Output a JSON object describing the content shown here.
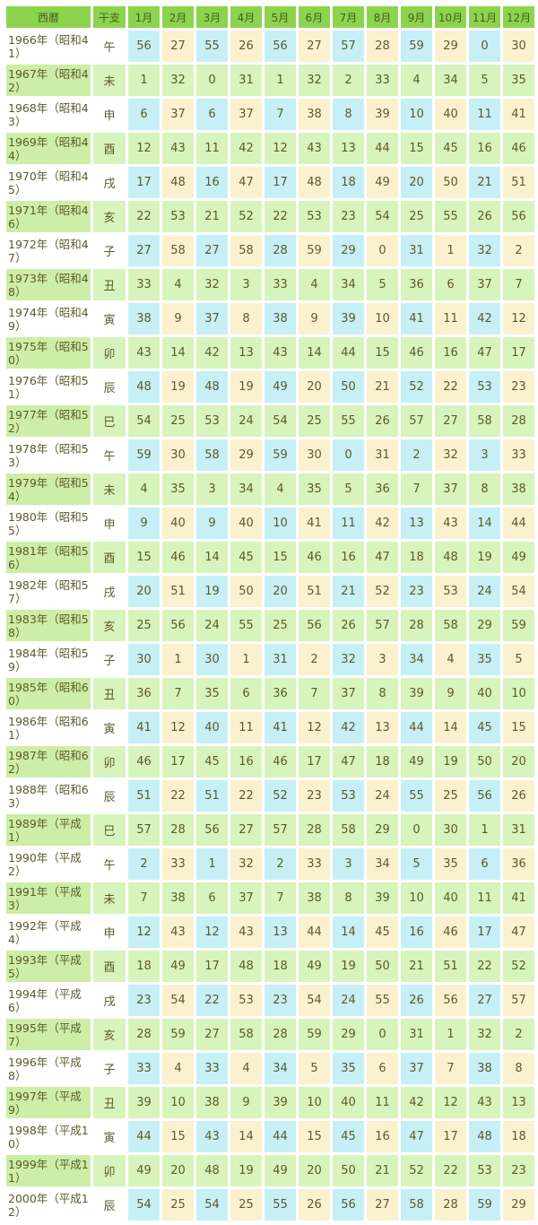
{
  "table": {
    "headers": [
      "西暦",
      "干支",
      "1月",
      "2月",
      "3月",
      "4月",
      "5月",
      "6月",
      "7月",
      "8月",
      "9月",
      "10月",
      "11月",
      "12月"
    ],
    "colors": {
      "header": "#8cd44e",
      "blue": "#c6f0f6",
      "yellow": "#fbf1cf",
      "green": "#d7f4bc",
      "text": "#5b5a2c"
    },
    "rows": [
      {
        "year": "1966年（昭和41）",
        "eto": "午",
        "values": [
          56,
          27,
          55,
          26,
          56,
          27,
          57,
          28,
          59,
          29,
          0,
          30
        ]
      },
      {
        "year": "1967年（昭和42）",
        "eto": "未",
        "values": [
          1,
          32,
          0,
          31,
          1,
          32,
          2,
          33,
          4,
          34,
          5,
          35
        ]
      },
      {
        "year": "1968年（昭和43）",
        "eto": "申",
        "values": [
          6,
          37,
          6,
          37,
          7,
          38,
          8,
          39,
          10,
          40,
          11,
          41
        ]
      },
      {
        "year": "1969年（昭和44）",
        "eto": "酉",
        "values": [
          12,
          43,
          11,
          42,
          12,
          43,
          13,
          44,
          15,
          45,
          16,
          46
        ]
      },
      {
        "year": "1970年（昭和45）",
        "eto": "戌",
        "values": [
          17,
          48,
          16,
          47,
          17,
          48,
          18,
          49,
          20,
          50,
          21,
          51
        ]
      },
      {
        "year": "1971年（昭和46）",
        "eto": "亥",
        "values": [
          22,
          53,
          21,
          52,
          22,
          53,
          23,
          54,
          25,
          55,
          26,
          56
        ]
      },
      {
        "year": "1972年（昭和47）",
        "eto": "子",
        "values": [
          27,
          58,
          27,
          58,
          28,
          59,
          29,
          0,
          31,
          1,
          32,
          2
        ]
      },
      {
        "year": "1973年（昭和48）",
        "eto": "丑",
        "values": [
          33,
          4,
          32,
          3,
          33,
          4,
          34,
          5,
          36,
          6,
          37,
          7
        ]
      },
      {
        "year": "1974年（昭和49）",
        "eto": "寅",
        "values": [
          38,
          9,
          37,
          8,
          38,
          9,
          39,
          10,
          41,
          11,
          42,
          12
        ]
      },
      {
        "year": "1975年（昭和50）",
        "eto": "卯",
        "values": [
          43,
          14,
          42,
          13,
          43,
          14,
          44,
          15,
          46,
          16,
          47,
          17
        ]
      },
      {
        "year": "1976年（昭和51）",
        "eto": "辰",
        "values": [
          48,
          19,
          48,
          19,
          49,
          20,
          50,
          21,
          52,
          22,
          53,
          23
        ]
      },
      {
        "year": "1977年（昭和52）",
        "eto": "巳",
        "values": [
          54,
          25,
          53,
          24,
          54,
          25,
          55,
          26,
          57,
          27,
          58,
          28
        ]
      },
      {
        "year": "1978年（昭和53）",
        "eto": "午",
        "values": [
          59,
          30,
          58,
          29,
          59,
          30,
          0,
          31,
          2,
          32,
          3,
          33
        ]
      },
      {
        "year": "1979年（昭和54）",
        "eto": "未",
        "values": [
          4,
          35,
          3,
          34,
          4,
          35,
          5,
          36,
          7,
          37,
          8,
          38
        ]
      },
      {
        "year": "1980年（昭和55）",
        "eto": "申",
        "values": [
          9,
          40,
          9,
          40,
          10,
          41,
          11,
          42,
          13,
          43,
          14,
          44
        ]
      },
      {
        "year": "1981年（昭和56）",
        "eto": "酉",
        "values": [
          15,
          46,
          14,
          45,
          15,
          46,
          16,
          47,
          18,
          48,
          19,
          49
        ]
      },
      {
        "year": "1982年（昭和57）",
        "eto": "戌",
        "values": [
          20,
          51,
          19,
          50,
          20,
          51,
          21,
          52,
          23,
          53,
          24,
          54
        ]
      },
      {
        "year": "1983年（昭和58）",
        "eto": "亥",
        "values": [
          25,
          56,
          24,
          55,
          25,
          56,
          26,
          57,
          28,
          58,
          29,
          59
        ]
      },
      {
        "year": "1984年（昭和59）",
        "eto": "子",
        "values": [
          30,
          1,
          30,
          1,
          31,
          2,
          32,
          3,
          34,
          4,
          35,
          5
        ]
      },
      {
        "year": "1985年（昭和60）",
        "eto": "丑",
        "values": [
          36,
          7,
          35,
          6,
          36,
          7,
          37,
          8,
          39,
          9,
          40,
          10
        ]
      },
      {
        "year": "1986年（昭和61）",
        "eto": "寅",
        "values": [
          41,
          12,
          40,
          11,
          41,
          12,
          42,
          13,
          44,
          14,
          45,
          15
        ]
      },
      {
        "year": "1987年（昭和62）",
        "eto": "卯",
        "values": [
          46,
          17,
          45,
          16,
          46,
          17,
          47,
          18,
          49,
          19,
          50,
          20
        ]
      },
      {
        "year": "1988年（昭和63）",
        "eto": "辰",
        "values": [
          51,
          22,
          51,
          22,
          52,
          23,
          53,
          24,
          55,
          25,
          56,
          26
        ]
      },
      {
        "year": "1989年（平成1）",
        "eto": "巳",
        "values": [
          57,
          28,
          56,
          27,
          57,
          28,
          58,
          29,
          0,
          30,
          1,
          31
        ]
      },
      {
        "year": "1990年（平成2）",
        "eto": "午",
        "values": [
          2,
          33,
          1,
          32,
          2,
          33,
          3,
          34,
          5,
          35,
          6,
          36
        ]
      },
      {
        "year": "1991年（平成3）",
        "eto": "未",
        "values": [
          7,
          38,
          6,
          37,
          7,
          38,
          8,
          39,
          10,
          40,
          11,
          41
        ]
      },
      {
        "year": "1992年（平成4）",
        "eto": "申",
        "values": [
          12,
          43,
          12,
          43,
          13,
          44,
          14,
          45,
          16,
          46,
          17,
          47
        ]
      },
      {
        "year": "1993年（平成5）",
        "eto": "酉",
        "values": [
          18,
          49,
          17,
          48,
          18,
          49,
          19,
          50,
          21,
          51,
          22,
          52
        ]
      },
      {
        "year": "1994年（平成6）",
        "eto": "戌",
        "values": [
          23,
          54,
          22,
          53,
          23,
          54,
          24,
          55,
          26,
          56,
          27,
          57
        ]
      },
      {
        "year": "1995年（平成7）",
        "eto": "亥",
        "values": [
          28,
          59,
          27,
          58,
          28,
          59,
          29,
          0,
          31,
          1,
          32,
          2
        ]
      },
      {
        "year": "1996年（平成8）",
        "eto": "子",
        "values": [
          33,
          4,
          33,
          4,
          34,
          5,
          35,
          6,
          37,
          7,
          38,
          8
        ]
      },
      {
        "year": "1997年（平成9）",
        "eto": "丑",
        "values": [
          39,
          10,
          38,
          9,
          39,
          10,
          40,
          11,
          42,
          12,
          43,
          13
        ]
      },
      {
        "year": "1998年（平成10）",
        "eto": "寅",
        "values": [
          44,
          15,
          43,
          14,
          44,
          15,
          45,
          16,
          47,
          17,
          48,
          18
        ]
      },
      {
        "year": "1999年（平成11）",
        "eto": "卯",
        "values": [
          49,
          20,
          48,
          19,
          49,
          20,
          50,
          21,
          52,
          22,
          53,
          23
        ]
      },
      {
        "year": "2000年（平成12）",
        "eto": "辰",
        "values": [
          54,
          25,
          54,
          25,
          55,
          26,
          56,
          27,
          58,
          28,
          59,
          29
        ]
      }
    ]
  }
}
